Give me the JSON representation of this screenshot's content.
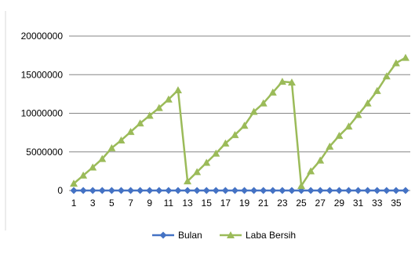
{
  "chart_data": {
    "type": "line",
    "title": "",
    "xlabel": "",
    "ylabel": "",
    "x": [
      1,
      2,
      3,
      4,
      5,
      6,
      7,
      8,
      9,
      10,
      11,
      12,
      13,
      14,
      15,
      16,
      17,
      18,
      19,
      20,
      21,
      22,
      23,
      24,
      25,
      26,
      27,
      28,
      29,
      30,
      31,
      32,
      33,
      34,
      35,
      36
    ],
    "x_tick_labels": [
      "1",
      "3",
      "5",
      "7",
      "9",
      "11",
      "13",
      "15",
      "17",
      "19",
      "21",
      "23",
      "25",
      "27",
      "29",
      "31",
      "33",
      "35"
    ],
    "ylim": [
      0,
      20000000
    ],
    "y_ticks": [
      0,
      5000000,
      10000000,
      15000000,
      20000000
    ],
    "y_tick_labels": [
      "0",
      "5000000",
      "10000000",
      "15000000",
      "20000000"
    ],
    "grid": true,
    "legend_position": "bottom",
    "series": [
      {
        "name": "Bulan",
        "color": "#4472c4",
        "marker": "diamond",
        "values": [
          1,
          2,
          3,
          4,
          5,
          6,
          7,
          8,
          9,
          10,
          11,
          12,
          13,
          14,
          15,
          16,
          17,
          18,
          19,
          20,
          21,
          22,
          23,
          24,
          25,
          26,
          27,
          28,
          29,
          30,
          31,
          32,
          33,
          34,
          35,
          36
        ]
      },
      {
        "name": "Laba Bersih",
        "color": "#9bbb59",
        "marker": "triangle",
        "values": [
          900000,
          1950000,
          3000000,
          4100000,
          5500000,
          6500000,
          7600000,
          8700000,
          9700000,
          10700000,
          11800000,
          13000000,
          1200000,
          2400000,
          3600000,
          4800000,
          6100000,
          7200000,
          8400000,
          10200000,
          11300000,
          12700000,
          14100000,
          14000000,
          600000,
          2500000,
          3900000,
          5700000,
          7100000,
          8300000,
          9800000,
          11300000,
          12900000,
          14800000,
          16500000,
          17200000
        ]
      }
    ]
  }
}
